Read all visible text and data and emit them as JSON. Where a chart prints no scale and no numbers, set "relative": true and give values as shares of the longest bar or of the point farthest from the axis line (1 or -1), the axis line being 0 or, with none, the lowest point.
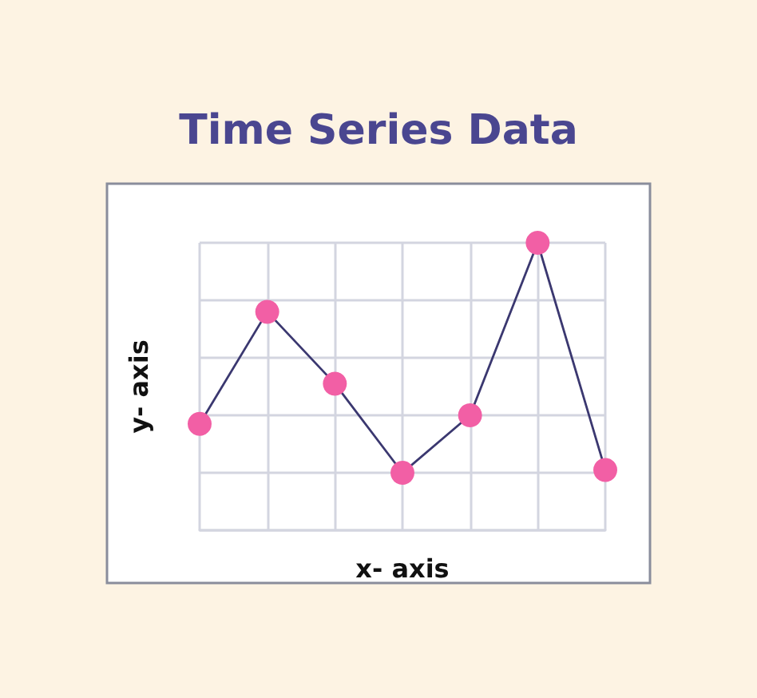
{
  "chart_data": {
    "type": "line",
    "title": "Time Series Data",
    "xlabel": "x- axis",
    "ylabel": "y- axis",
    "categories": [
      null,
      null,
      null,
      null,
      null,
      null,
      null
    ],
    "relative": true,
    "grid": true,
    "marker": "circle",
    "line_style": "solid",
    "series": [
      {
        "color": "#3b3870",
        "colors": [
          "#f25fa5",
          "#f25fa5",
          "#f25fa5",
          "#f25fa5",
          "#f25fa5",
          "#f25fa5",
          "#f25fa5"
        ],
        "values": [
          0.37,
          0.76,
          0.51,
          0.2,
          0.4,
          1,
          0.21
        ]
      }
    ]
  }
}
